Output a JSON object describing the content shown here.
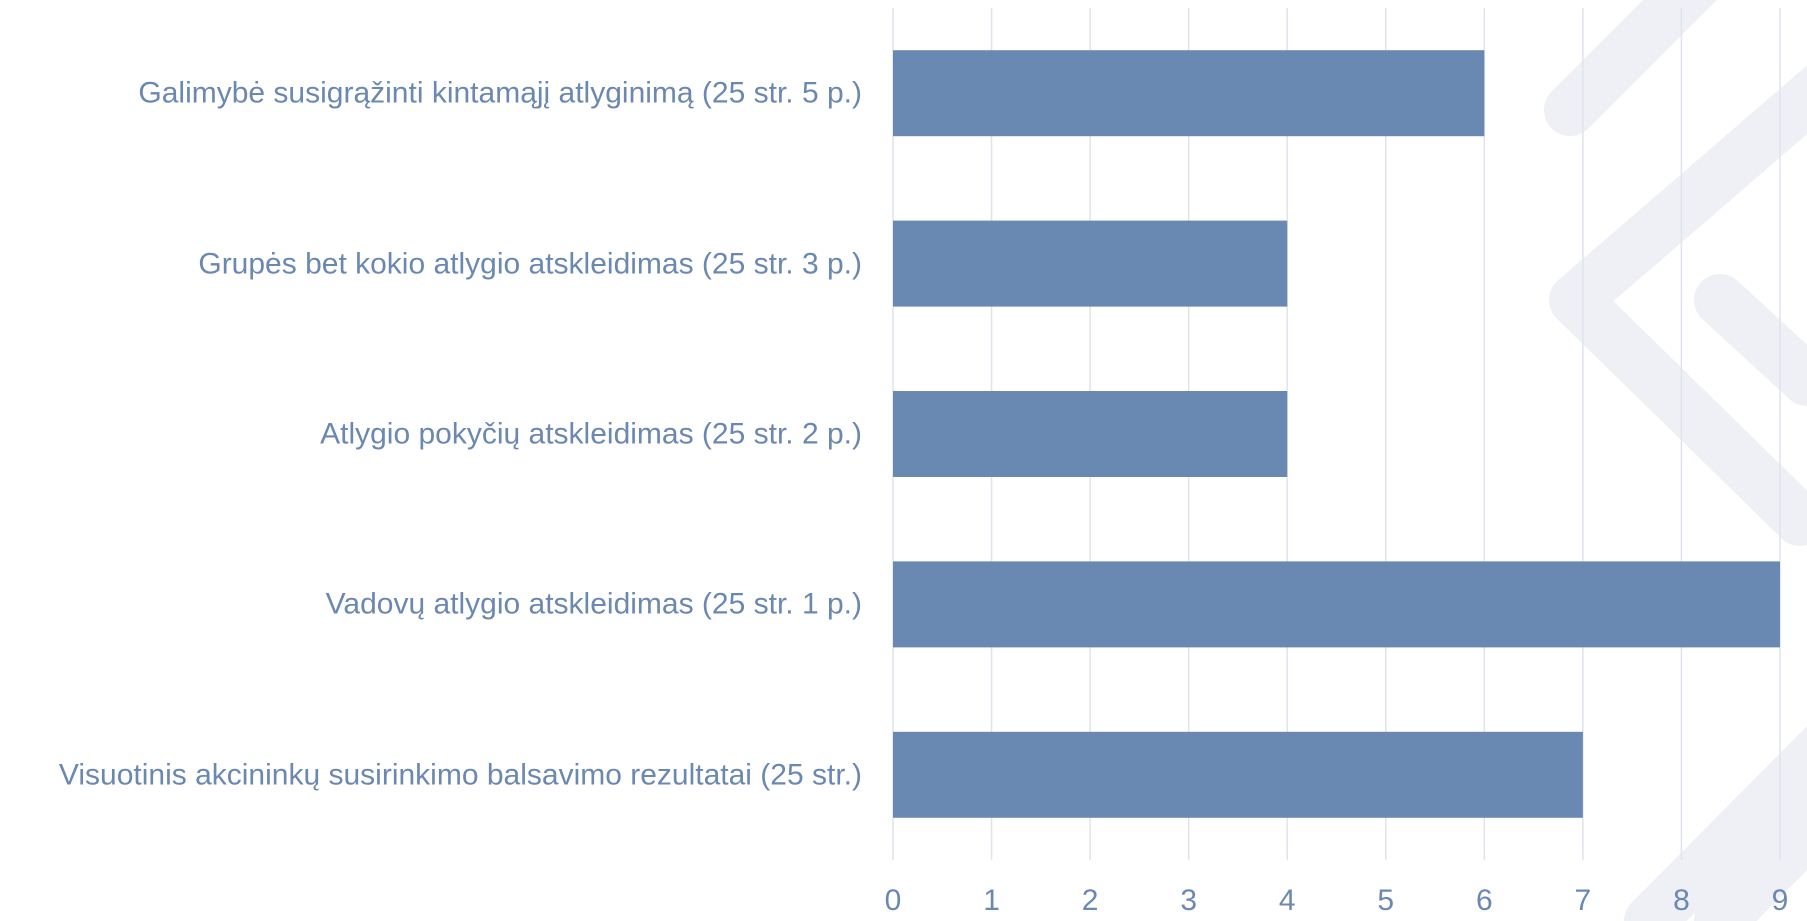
{
  "chart_data": {
    "type": "bar",
    "orientation": "horizontal",
    "categories": [
      "Galimybė susigrąžinti kintamąjį atlyginimą (25 str. 5 p.)",
      "Grupės bet kokio atlygio atskleidimas (25 str. 3 p.)",
      "Atlygio pokyčių atskleidimas (25 str. 2 p.)",
      "Vadovų atlygio atskleidimas (25 str. 1 p.)",
      "Visuotinis akcininkų susirinkimo balsavimo rezultatai (25 str.)"
    ],
    "values": [
      6,
      4,
      4,
      9,
      7
    ],
    "color": "#6a89b2",
    "xlim": [
      0,
      9
    ],
    "xticks": [
      0,
      1,
      2,
      3,
      4,
      5,
      6,
      7,
      8,
      9
    ],
    "grid": true
  }
}
